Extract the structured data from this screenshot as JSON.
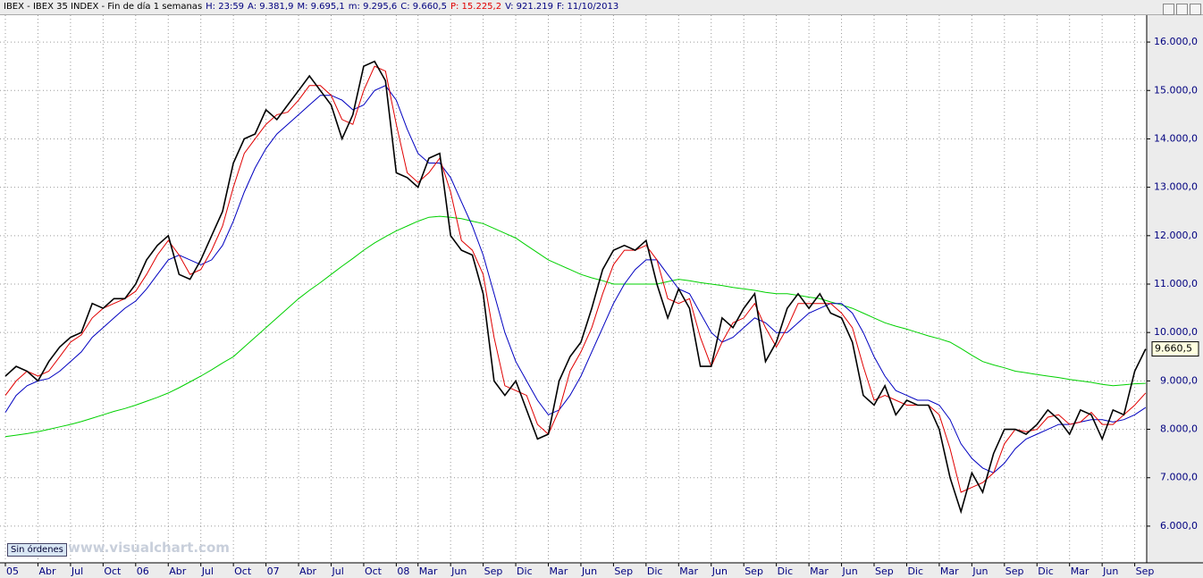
{
  "header": {
    "title": "IBEX - IBEX 35 INDEX - Fin de día 1 semanas",
    "fields": [
      {
        "text": "H: 23:59",
        "color": "#00007f"
      },
      {
        "text": "A: 9.381,9",
        "color": "#00007f"
      },
      {
        "text": "M: 9.695,1",
        "color": "#00007f"
      },
      {
        "text": "m: 9.295,6",
        "color": "#00007f"
      },
      {
        "text": "C: 9.660,5",
        "color": "#00007f"
      },
      {
        "text": "P: 15.225,2",
        "color": "#e00000"
      },
      {
        "text": "V: 921.219",
        "color": "#00007f"
      },
      {
        "text": "F: 11/10/2013",
        "color": "#00007f"
      }
    ]
  },
  "status_button": "Sin órdenes",
  "watermark": "www.visualchart.com",
  "chart_data": {
    "type": "line",
    "categories": [
      "05",
      null,
      null,
      "Abr",
      null,
      null,
      "Jul",
      null,
      null,
      "Oct",
      null,
      null,
      "06",
      null,
      null,
      "Abr",
      null,
      null,
      "Jul",
      null,
      null,
      "Oct",
      null,
      null,
      "07",
      null,
      null,
      "Abr",
      null,
      null,
      "Jul",
      null,
      null,
      "Oct",
      null,
      null,
      "08",
      null,
      "Mar",
      null,
      null,
      "Jun",
      null,
      null,
      "Sep",
      null,
      null,
      "Dic",
      null,
      null,
      "Mar",
      null,
      null,
      "Jun",
      null,
      null,
      "Sep",
      null,
      null,
      "Dic",
      null,
      null,
      "Mar",
      null,
      null,
      "Jun",
      null,
      null,
      "Sep",
      null,
      null,
      "Dic",
      null,
      null,
      "Mar",
      null,
      null,
      "Jun",
      null,
      null,
      "Sep",
      null,
      null,
      "Dic",
      null,
      null,
      "Mar",
      null,
      null,
      "Jun",
      null,
      null,
      "Sep",
      null,
      null,
      "Dic",
      null,
      null,
      "Mar",
      null,
      null,
      "Jun",
      null,
      null,
      "Sep",
      null
    ],
    "series": [
      {
        "color": "#000000",
        "width": 1.6,
        "values": [
          9100,
          9300,
          9200,
          9000,
          9400,
          9700,
          9900,
          10000,
          10600,
          10500,
          10700,
          10700,
          11000,
          11500,
          11800,
          12000,
          11200,
          11100,
          11500,
          12000,
          12500,
          13500,
          14000,
          14100,
          14600,
          14400,
          14700,
          15000,
          15300,
          15000,
          14700,
          14000,
          14500,
          15500,
          15600,
          15200,
          13300,
          13200,
          13000,
          13600,
          13700,
          12000,
          11700,
          11600,
          10800,
          9000,
          8700,
          9000,
          8400,
          7800,
          7900,
          9000,
          9500,
          9800,
          10500,
          11300,
          11700,
          11800,
          11700,
          11900,
          11000,
          10300,
          10900,
          10500,
          9300,
          9300,
          10300,
          10100,
          10500,
          10800,
          9400,
          9800,
          10500,
          10800,
          10500,
          10800,
          10400,
          10300,
          9800,
          8700,
          8500,
          8900,
          8300,
          8600,
          8500,
          8500,
          8000,
          7000,
          6300,
          7100,
          6700,
          7500,
          8000,
          8000,
          7900,
          8100,
          8400,
          8200,
          7900,
          8400,
          8300,
          7800,
          8400,
          8300,
          9200,
          9660.5
        ]
      },
      {
        "color": "#e00000",
        "width": 1,
        "values": [
          8700,
          9000,
          9200,
          9100,
          9200,
          9500,
          9800,
          9950,
          10300,
          10500,
          10600,
          10700,
          10850,
          11200,
          11600,
          11900,
          11600,
          11200,
          11300,
          11700,
          12200,
          13000,
          13700,
          14000,
          14300,
          14500,
          14550,
          14800,
          15100,
          15100,
          14900,
          14400,
          14300,
          15000,
          15500,
          15400,
          14300,
          13300,
          13100,
          13300,
          13600,
          12900,
          11900,
          11700,
          11200,
          9900,
          8900,
          8800,
          8700,
          8100,
          7900,
          8400,
          9200,
          9600,
          10100,
          10800,
          11400,
          11700,
          11700,
          11800,
          11500,
          10700,
          10600,
          10700,
          9900,
          9300,
          9800,
          10200,
          10300,
          10600,
          10100,
          9700,
          10100,
          10600,
          10600,
          10600,
          10600,
          10400,
          10100,
          9300,
          8600,
          8700,
          8600,
          8500,
          8500,
          8500,
          8300,
          7600,
          6700,
          6800,
          6900,
          7100,
          7700,
          8000,
          7950,
          8000,
          8250,
          8300,
          8100,
          8150,
          8350,
          8100,
          8100,
          8300,
          8500,
          8750
        ]
      },
      {
        "color": "#0000c0",
        "width": 1,
        "values": [
          8350,
          8700,
          8900,
          9000,
          9050,
          9200,
          9400,
          9600,
          9900,
          10100,
          10300,
          10500,
          10650,
          10900,
          11200,
          11500,
          11600,
          11500,
          11400,
          11500,
          11800,
          12300,
          12900,
          13400,
          13800,
          14100,
          14300,
          14500,
          14700,
          14900,
          14900,
          14800,
          14600,
          14700,
          15000,
          15100,
          14800,
          14200,
          13700,
          13500,
          13500,
          13200,
          12700,
          12200,
          11600,
          10800,
          10000,
          9400,
          9000,
          8600,
          8300,
          8400,
          8700,
          9100,
          9600,
          10100,
          10600,
          11000,
          11300,
          11500,
          11500,
          11200,
          10900,
          10800,
          10400,
          10000,
          9800,
          9900,
          10100,
          10300,
          10200,
          10000,
          10000,
          10200,
          10400,
          10500,
          10600,
          10600,
          10400,
          10000,
          9500,
          9100,
          8800,
          8700,
          8600,
          8600,
          8500,
          8200,
          7700,
          7400,
          7200,
          7100,
          7300,
          7600,
          7800,
          7900,
          8000,
          8100,
          8100,
          8150,
          8200,
          8200,
          8150,
          8200,
          8300,
          8450
        ]
      },
      {
        "color": "#00d000",
        "width": 1,
        "values": [
          7850,
          7880,
          7910,
          7950,
          8000,
          8050,
          8100,
          8160,
          8230,
          8300,
          8370,
          8430,
          8500,
          8580,
          8660,
          8750,
          8860,
          8980,
          9100,
          9230,
          9370,
          9500,
          9700,
          9900,
          10100,
          10300,
          10500,
          10700,
          10870,
          11030,
          11200,
          11370,
          11530,
          11700,
          11850,
          11980,
          12100,
          12200,
          12300,
          12380,
          12400,
          12380,
          12350,
          12300,
          12250,
          12150,
          12050,
          11950,
          11800,
          11650,
          11500,
          11400,
          11300,
          11200,
          11130,
          11070,
          11000,
          11000,
          11000,
          11000,
          11000,
          11050,
          11100,
          11070,
          11030,
          11000,
          10970,
          10930,
          10900,
          10870,
          10830,
          10800,
          10800,
          10770,
          10730,
          10700,
          10630,
          10570,
          10500,
          10400,
          10300,
          10200,
          10130,
          10070,
          10000,
          9930,
          9870,
          9800,
          9670,
          9530,
          9400,
          9330,
          9270,
          9200,
          9170,
          9130,
          9100,
          9070,
          9030,
          9000,
          8970,
          8930,
          8900,
          8920,
          8940,
          8950
        ]
      }
    ],
    "last_value_label": "9.660,5",
    "ylim": [
      5242,
      16555
    ],
    "yticks": [
      {
        "value": 6000,
        "label": "6.000,0"
      },
      {
        "value": 7000,
        "label": "7.000,0"
      },
      {
        "value": 8000,
        "label": "8.000,0"
      },
      {
        "value": 9000,
        "label": "9.000,0"
      },
      {
        "value": 10000,
        "label": "10.000,0"
      },
      {
        "value": 11000,
        "label": "11.000,0"
      },
      {
        "value": 12000,
        "label": "12.000,0"
      },
      {
        "value": 13000,
        "label": "13.000,0"
      },
      {
        "value": 14000,
        "label": "14.000,0"
      },
      {
        "value": 15000,
        "label": "15.000,0"
      },
      {
        "value": 16000,
        "label": "16.000,0"
      }
    ],
    "grid": true
  }
}
